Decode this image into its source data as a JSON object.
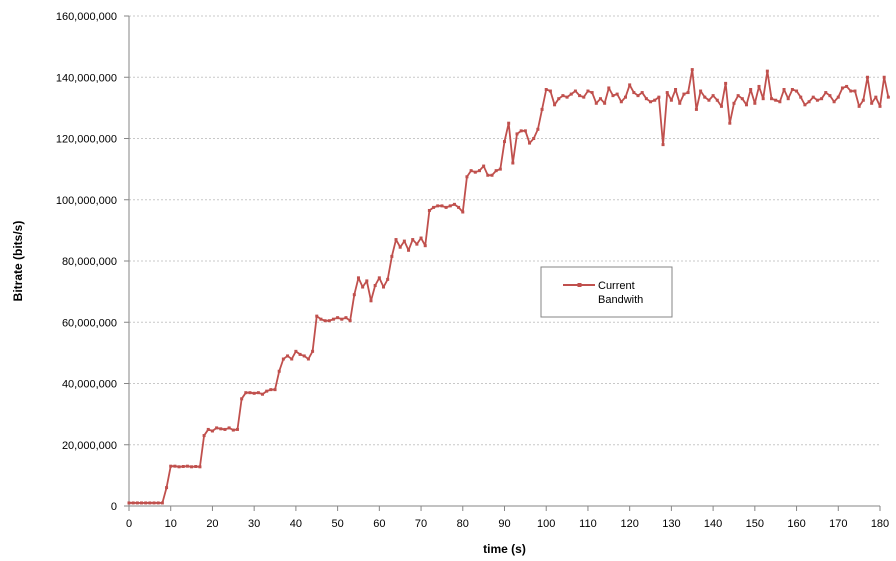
{
  "chart_data": {
    "type": "line",
    "title": "",
    "xlabel": "time (s)",
    "ylabel": "Bitrate (bits/s)",
    "xlim": [
      0,
      180
    ],
    "ylim": [
      0,
      160000000
    ],
    "x_ticks": [
      "0",
      "10",
      "20",
      "30",
      "40",
      "50",
      "60",
      "70",
      "80",
      "90",
      "100",
      "110",
      "120",
      "130",
      "140",
      "150",
      "160",
      "170",
      "180"
    ],
    "y_ticks": [
      "0",
      "20,000,000",
      "40,000,000",
      "60,000,000",
      "80,000,000",
      "100,000,000",
      "120,000,000",
      "140,000,000",
      "160,000,000"
    ],
    "grid": "horizontal",
    "legend_position": "center-right",
    "series": [
      {
        "name": "Current Bandwith",
        "color": "#C0504D",
        "marker": "square",
        "points": [
          [
            0,
            1000000
          ],
          [
            1,
            1000000
          ],
          [
            2,
            1000000
          ],
          [
            3,
            1000000
          ],
          [
            4,
            1000000
          ],
          [
            5,
            1000000
          ],
          [
            6,
            1000000
          ],
          [
            7,
            1000000
          ],
          [
            8,
            1000000
          ],
          [
            9,
            6000000
          ],
          [
            10,
            13000000
          ],
          [
            11,
            13000000
          ],
          [
            12,
            12800000
          ],
          [
            13,
            12900000
          ],
          [
            14,
            13000000
          ],
          [
            15,
            12800000
          ],
          [
            16,
            12900000
          ],
          [
            17,
            12800000
          ],
          [
            18,
            23000000
          ],
          [
            19,
            25000000
          ],
          [
            20,
            24500000
          ],
          [
            21,
            25500000
          ],
          [
            22,
            25200000
          ],
          [
            23,
            25000000
          ],
          [
            24,
            25500000
          ],
          [
            25,
            24800000
          ],
          [
            26,
            25000000
          ],
          [
            27,
            35000000
          ],
          [
            28,
            37000000
          ],
          [
            29,
            37000000
          ],
          [
            30,
            36800000
          ],
          [
            31,
            37000000
          ],
          [
            32,
            36500000
          ],
          [
            33,
            37500000
          ],
          [
            34,
            38000000
          ],
          [
            35,
            38000000
          ],
          [
            36,
            44000000
          ],
          [
            37,
            48000000
          ],
          [
            38,
            49000000
          ],
          [
            39,
            48000000
          ],
          [
            40,
            50500000
          ],
          [
            41,
            49500000
          ],
          [
            42,
            49000000
          ],
          [
            43,
            48000000
          ],
          [
            44,
            50500000
          ],
          [
            45,
            62000000
          ],
          [
            46,
            61000000
          ],
          [
            47,
            60500000
          ],
          [
            48,
            60500000
          ],
          [
            49,
            61000000
          ],
          [
            50,
            61500000
          ],
          [
            51,
            61000000
          ],
          [
            52,
            61500000
          ],
          [
            53,
            60500000
          ],
          [
            54,
            69000000
          ],
          [
            55,
            74500000
          ],
          [
            56,
            71500000
          ],
          [
            57,
            73500000
          ],
          [
            58,
            67000000
          ],
          [
            59,
            72000000
          ],
          [
            60,
            74500000
          ],
          [
            61,
            71500000
          ],
          [
            62,
            74000000
          ],
          [
            63,
            81500000
          ],
          [
            64,
            87000000
          ],
          [
            65,
            84500000
          ],
          [
            66,
            86500000
          ],
          [
            67,
            83500000
          ],
          [
            68,
            87000000
          ],
          [
            69,
            85500000
          ],
          [
            70,
            87500000
          ],
          [
            71,
            85000000
          ],
          [
            72,
            96500000
          ],
          [
            73,
            97500000
          ],
          [
            74,
            98000000
          ],
          [
            75,
            98000000
          ],
          [
            76,
            97500000
          ],
          [
            77,
            98000000
          ],
          [
            78,
            98500000
          ],
          [
            79,
            97500000
          ],
          [
            80,
            96000000
          ],
          [
            81,
            107500000
          ],
          [
            82,
            109500000
          ],
          [
            83,
            109000000
          ],
          [
            84,
            109500000
          ],
          [
            85,
            111000000
          ],
          [
            86,
            108000000
          ],
          [
            87,
            108000000
          ],
          [
            88,
            109500000
          ],
          [
            89,
            110000000
          ],
          [
            90,
            119000000
          ],
          [
            91,
            125000000
          ],
          [
            92,
            112000000
          ],
          [
            93,
            121500000
          ],
          [
            94,
            122500000
          ],
          [
            95,
            122500000
          ],
          [
            96,
            118500000
          ],
          [
            97,
            120000000
          ],
          [
            98,
            123000000
          ],
          [
            99,
            129500000
          ],
          [
            100,
            136000000
          ],
          [
            101,
            135500000
          ],
          [
            102,
            131000000
          ],
          [
            103,
            133000000
          ],
          [
            104,
            134000000
          ],
          [
            105,
            133500000
          ],
          [
            106,
            134500000
          ],
          [
            107,
            135500000
          ],
          [
            108,
            134000000
          ],
          [
            109,
            133500000
          ],
          [
            110,
            135500000
          ],
          [
            111,
            135000000
          ],
          [
            112,
            131500000
          ],
          [
            113,
            133000000
          ],
          [
            114,
            131500000
          ],
          [
            115,
            136500000
          ],
          [
            116,
            134000000
          ],
          [
            117,
            134500000
          ],
          [
            118,
            132000000
          ],
          [
            119,
            133500000
          ],
          [
            120,
            137500000
          ],
          [
            121,
            135000000
          ],
          [
            122,
            134000000
          ],
          [
            123,
            135000000
          ],
          [
            124,
            133000000
          ],
          [
            125,
            132000000
          ],
          [
            126,
            132500000
          ],
          [
            127,
            133500000
          ],
          [
            128,
            118000000
          ],
          [
            129,
            135000000
          ],
          [
            130,
            132500000
          ],
          [
            131,
            136000000
          ],
          [
            132,
            131500000
          ],
          [
            133,
            134500000
          ],
          [
            134,
            135000000
          ],
          [
            135,
            142500000
          ],
          [
            136,
            129500000
          ],
          [
            137,
            135500000
          ],
          [
            138,
            133500000
          ],
          [
            139,
            132500000
          ],
          [
            140,
            134000000
          ],
          [
            141,
            132500000
          ],
          [
            142,
            130500000
          ],
          [
            143,
            138000000
          ],
          [
            144,
            125000000
          ],
          [
            145,
            131500000
          ],
          [
            146,
            134000000
          ],
          [
            147,
            133000000
          ],
          [
            148,
            131000000
          ],
          [
            149,
            136000000
          ],
          [
            150,
            131500000
          ],
          [
            151,
            137000000
          ],
          [
            152,
            133000000
          ],
          [
            153,
            142000000
          ],
          [
            154,
            133000000
          ],
          [
            155,
            132500000
          ],
          [
            156,
            132000000
          ],
          [
            157,
            136000000
          ],
          [
            158,
            133000000
          ],
          [
            159,
            136000000
          ],
          [
            160,
            135500000
          ],
          [
            161,
            133500000
          ],
          [
            162,
            131000000
          ],
          [
            163,
            132000000
          ],
          [
            164,
            133500000
          ],
          [
            165,
            132500000
          ],
          [
            166,
            133000000
          ],
          [
            167,
            135000000
          ],
          [
            168,
            134000000
          ],
          [
            169,
            132000000
          ],
          [
            170,
            133500000
          ],
          [
            171,
            136500000
          ],
          [
            172,
            137000000
          ],
          [
            173,
            135500000
          ],
          [
            174,
            135500000
          ],
          [
            175,
            130500000
          ],
          [
            176,
            132500000
          ],
          [
            177,
            140000000
          ],
          [
            178,
            131500000
          ],
          [
            179,
            133500000
          ],
          [
            180,
            130500000
          ],
          [
            181,
            140000000
          ],
          [
            182,
            133500000
          ]
        ]
      }
    ]
  }
}
